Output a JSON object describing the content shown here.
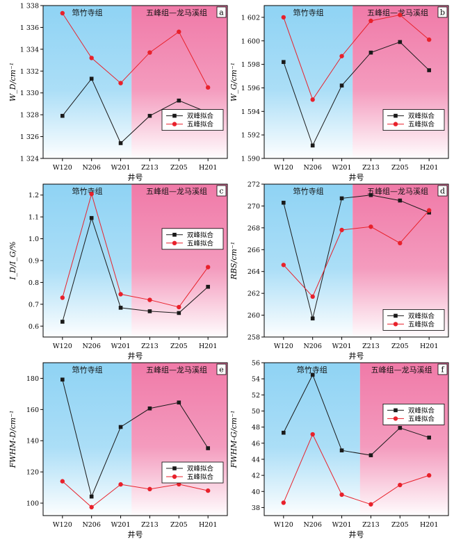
{
  "x_title": "井号",
  "legend": [
    "双峰拟合",
    "五峰拟合"
  ],
  "regions": [
    "筇竹寺组",
    "五峰组—龙马溪组"
  ],
  "colors": {
    "black": "#1a1a1a",
    "red": "#e8212b",
    "blue": "#8fd3f4",
    "pink": "#f07aa8"
  },
  "chart_data": [
    {
      "type": "line",
      "panel_label": "a",
      "ylabel": "W_D/cm⁻¹",
      "categories": [
        "W120",
        "N206",
        "W201",
        "Z213",
        "Z205",
        "H201"
      ],
      "ylim": [
        1324,
        1338
      ],
      "yticks": [
        "1 324",
        "1 326",
        "1 328",
        "1 330",
        "1 332",
        "1 334",
        "1 336",
        "1 338"
      ],
      "series": [
        {
          "name": "双峰拟合",
          "values": [
            1327.9,
            1331.3,
            1325.4,
            1327.9,
            1329.3,
            1328.2
          ]
        },
        {
          "name": "五峰拟合",
          "values": [
            1337.3,
            1333.2,
            1330.9,
            1333.7,
            1335.6,
            1330.5
          ]
        }
      ],
      "legend_position": "bottom-right"
    },
    {
      "type": "line",
      "panel_label": "b",
      "ylabel": "W_G/cm⁻¹",
      "categories": [
        "W120",
        "N206",
        "W201",
        "Z213",
        "Z205",
        "H201"
      ],
      "ylim": [
        1590,
        1603
      ],
      "yticks": [
        "1 590",
        "1 592",
        "1 594",
        "1 596",
        "1 598",
        "1 600",
        "1 602"
      ],
      "series": [
        {
          "name": "双峰拟合",
          "values": [
            1598.2,
            1591.1,
            1596.2,
            1599.0,
            1599.9,
            1597.5
          ]
        },
        {
          "name": "五峰拟合",
          "values": [
            1602.0,
            1595.0,
            1598.7,
            1601.7,
            1602.2,
            1600.1
          ]
        }
      ],
      "legend_position": "bottom-right"
    },
    {
      "type": "line",
      "panel_label": "c",
      "ylabel": "I_D/I_G/%",
      "categories": [
        "W120",
        "N206",
        "W201",
        "Z213",
        "Z205",
        "H201"
      ],
      "ylim": [
        0.55,
        1.25
      ],
      "yticks": [
        "0.6",
        "0.7",
        "0.8",
        "0.9",
        "1.0",
        "1.1",
        "1.2"
      ],
      "series": [
        {
          "name": "双峰拟合",
          "values": [
            0.62,
            1.095,
            0.684,
            0.668,
            0.66,
            0.78
          ]
        },
        {
          "name": "五峰拟合",
          "values": [
            0.73,
            1.205,
            0.746,
            0.72,
            0.687,
            0.87
          ]
        }
      ],
      "legend_position": "center-right"
    },
    {
      "type": "line",
      "panel_label": "d",
      "ylabel": "RBS/cm⁻¹",
      "categories": [
        "W120",
        "N206",
        "W201",
        "Z213",
        "Z205",
        "H201"
      ],
      "ylim": [
        258,
        272
      ],
      "yticks": [
        "258",
        "260",
        "262",
        "264",
        "266",
        "268",
        "270",
        "272"
      ],
      "series": [
        {
          "name": "双峰拟合",
          "values": [
            270.3,
            259.7,
            270.7,
            271.0,
            270.5,
            269.4
          ]
        },
        {
          "name": "五峰拟合",
          "values": [
            264.6,
            261.7,
            267.8,
            268.1,
            266.6,
            269.6
          ]
        }
      ],
      "legend_position": "bottom-right"
    },
    {
      "type": "line",
      "panel_label": "e",
      "ylabel": "FWHM-D/cm⁻¹",
      "categories": [
        "W120",
        "N206",
        "W201",
        "Z213",
        "Z205",
        "H201"
      ],
      "ylim": [
        92,
        190
      ],
      "yticks": [
        "100",
        "120",
        "140",
        "160",
        "180"
      ],
      "series": [
        {
          "name": "双峰拟合",
          "values": [
            179.2,
            104.2,
            148.8,
            160.7,
            164.5,
            135.2
          ]
        },
        {
          "name": "五峰拟合",
          "values": [
            114.0,
            97.4,
            112.0,
            109.0,
            112.1,
            108.0
          ]
        }
      ],
      "legend_position": "bottom-right"
    },
    {
      "type": "line",
      "panel_label": "f",
      "ylabel": "FWHM-G/cm⁻¹",
      "categories": [
        "W120",
        "N206",
        "W201",
        "Z213",
        "Z205",
        "H201"
      ],
      "ylim": [
        37,
        56
      ],
      "yticks": [
        "38",
        "40",
        "42",
        "44",
        "46",
        "48",
        "50",
        "52",
        "54",
        "56"
      ],
      "series": [
        {
          "name": "双峰拟合",
          "values": [
            47.3,
            54.5,
            45.1,
            44.5,
            47.9,
            46.7
          ]
        },
        {
          "name": "五峰拟合",
          "values": [
            38.6,
            47.1,
            39.6,
            38.4,
            40.8,
            42.0
          ]
        }
      ],
      "legend_position": "top-right"
    }
  ]
}
